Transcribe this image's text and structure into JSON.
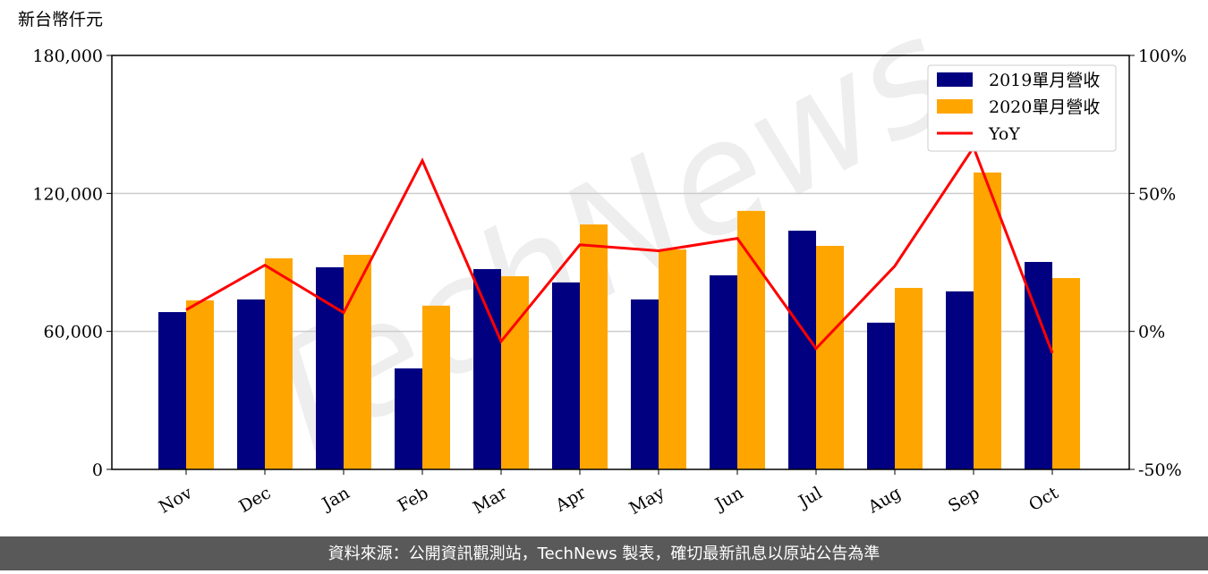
{
  "chart_data": {
    "type": "bar_line",
    "y_label": "新台幣仟元",
    "watermark": "TechNews",
    "source": "資料來源：公開資訊觀測站，TechNews 製表，確切最新訊息以原站公告為準",
    "categories": [
      "Nov",
      "Dec",
      "Jan",
      "Feb",
      "Mar",
      "Apr",
      "May",
      "Jun",
      "Jul",
      "Aug",
      "Sep",
      "Oct"
    ],
    "ylim": [
      0,
      180000
    ],
    "yticks": [
      0,
      {
        "value": 60000,
        "label": "60,000"
      },
      {
        "value": 120000,
        "label": "120,000"
      },
      {
        "value": 180000,
        "label": "180,000"
      }
    ],
    "y2lim": [
      -50,
      100
    ],
    "y2ticks": [
      {
        "value": -50,
        "label": "-50%"
      },
      {
        "value": 0,
        "label": "0%"
      },
      {
        "value": 50,
        "label": "50%"
      },
      {
        "value": 100,
        "label": "100%"
      }
    ],
    "grid": true,
    "legend": "upper right",
    "series": [
      {
        "name": "2019單月營收",
        "type": "bar",
        "color": "#000080",
        "values": [
          68400,
          73900,
          87900,
          43900,
          87100,
          81300,
          73900,
          84400,
          103800,
          63800,
          77400,
          90200
        ]
      },
      {
        "name": "2020單月營收",
        "type": "bar",
        "color": "#ffa500",
        "values": [
          73500,
          91800,
          93300,
          71200,
          84000,
          106500,
          95600,
          112400,
          97200,
          78900,
          129100,
          83200
        ]
      },
      {
        "name": "YoY",
        "type": "line",
        "axis": "y2",
        "color": "#ff0000",
        "values": [
          7.8,
          24.0,
          6.8,
          61.9,
          -3.6,
          31.4,
          29.2,
          33.7,
          -6.2,
          23.7,
          66.7,
          -7.8
        ]
      }
    ]
  }
}
